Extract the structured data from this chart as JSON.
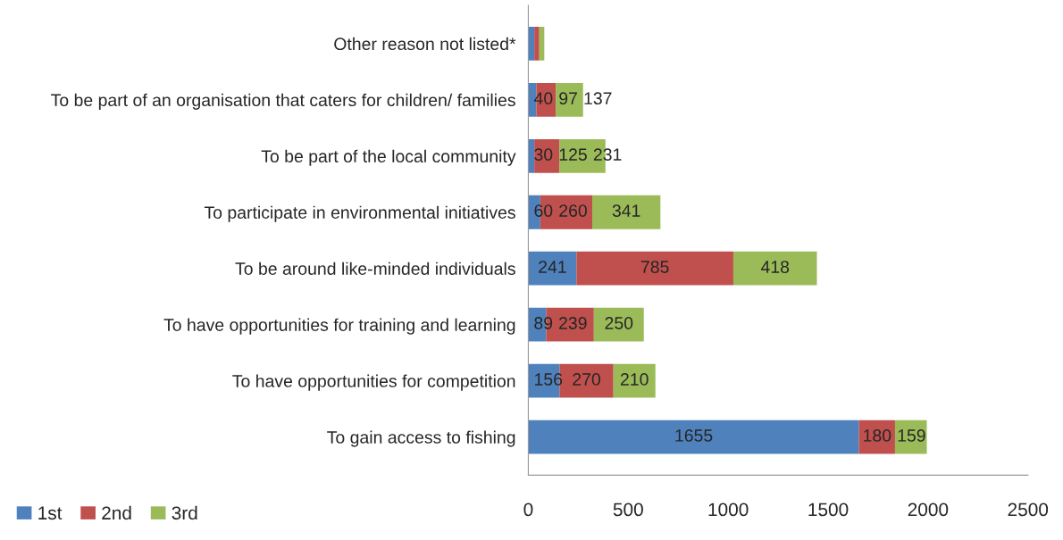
{
  "chart_data": {
    "type": "bar",
    "orientation": "horizontal",
    "stacked": true,
    "categories": [
      "Other reason not listed*",
      "To be part of an organisation that caters for children/ families",
      "To be part of the local community",
      "To participate in environmental initiatives",
      "To be around like-minded individuals",
      "To have opportunities for training and learning",
      "To have opportunities for competition",
      "To gain access to fishing"
    ],
    "series": [
      {
        "name": "1st",
        "color": "#4f81bd",
        "values": [
          30,
          40,
          30,
          60,
          241,
          89,
          156,
          1655
        ],
        "value_labels": [
          null,
          "40",
          "30",
          "60",
          "241",
          "89",
          "156",
          "1655"
        ]
      },
      {
        "name": "2nd",
        "color": "#c0504d",
        "values": [
          25,
          97,
          125,
          260,
          785,
          239,
          270,
          180
        ],
        "value_labels": [
          null,
          "97",
          "125",
          "260",
          "785",
          "239",
          "270",
          "180"
        ]
      },
      {
        "name": "3rd",
        "color": "#9bbb59",
        "values": [
          25,
          137,
          231,
          341,
          418,
          250,
          210,
          159
        ],
        "value_labels": [
          null,
          "137",
          "231",
          "341",
          "418",
          "250",
          "210",
          "159"
        ]
      }
    ],
    "xlim": [
      0,
      2500
    ],
    "xticks": [
      0,
      500,
      1000,
      1500,
      2000,
      2500
    ],
    "grid": false,
    "legend": "bottom left"
  }
}
